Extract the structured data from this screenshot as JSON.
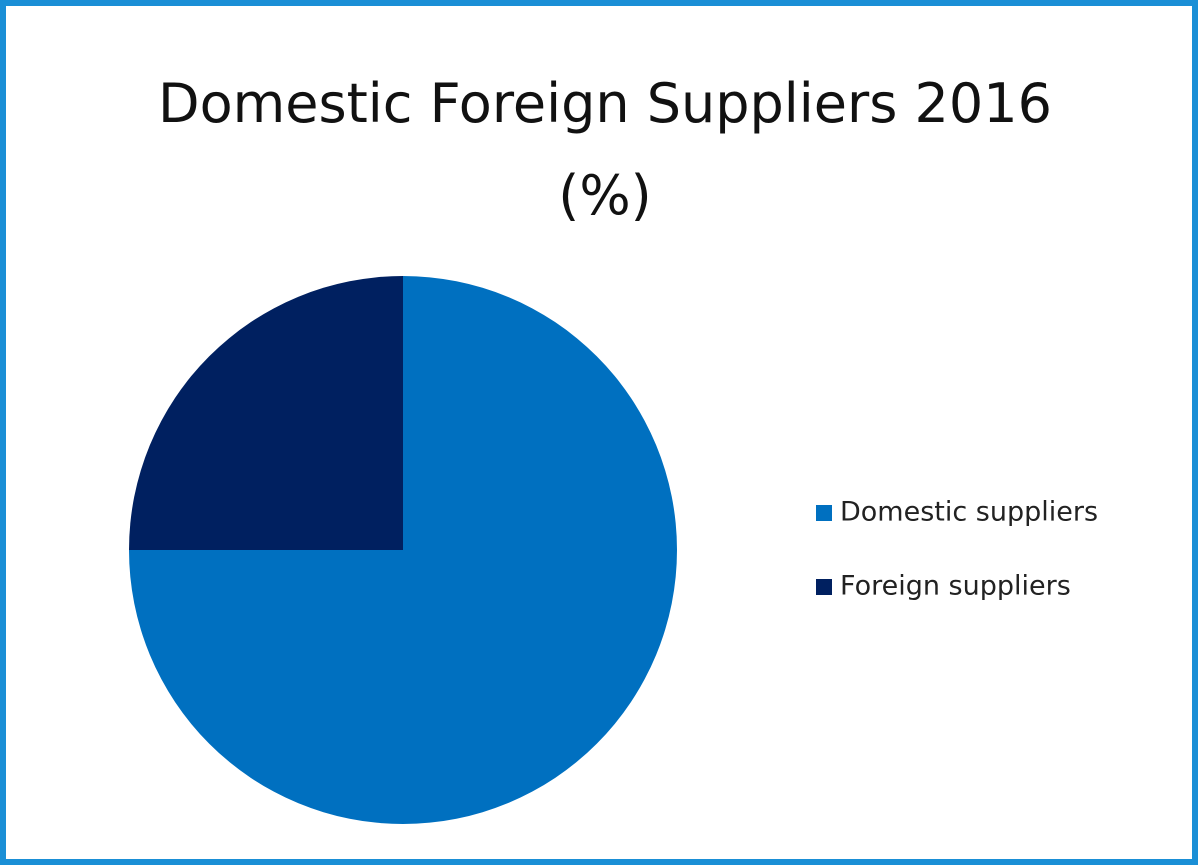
{
  "chart_data": {
    "type": "pie",
    "title": "Domestic Foreign Suppliers 2016 (%)",
    "categories": [
      "Domestic suppliers",
      "Foreign suppliers"
    ],
    "values": [
      75,
      25
    ],
    "colors": [
      "#0070c0",
      "#002060"
    ],
    "legend": "right"
  }
}
